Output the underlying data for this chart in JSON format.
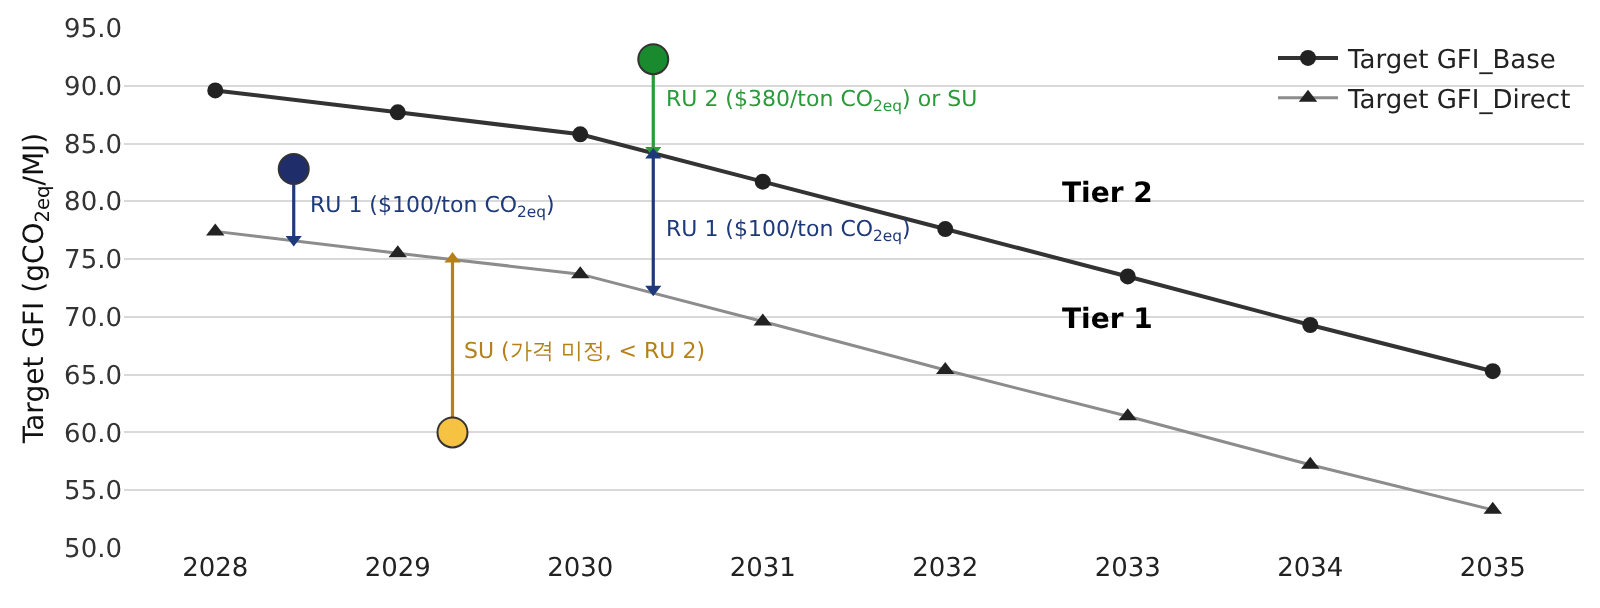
{
  "chart_data": {
    "type": "line",
    "ylabel": "Target GFI (gCO$_{2eq}$/MJ)",
    "xlim": [
      2027.5,
      2035.5
    ],
    "xticks": [
      2028,
      2029,
      2030,
      2031,
      2032,
      2033,
      2034,
      2035
    ],
    "ylim": [
      50,
      95
    ],
    "yticks": [
      {
        "value": 50,
        "label": "50.0"
      },
      {
        "value": 55,
        "label": "55.0"
      },
      {
        "value": 60,
        "label": "60.0"
      },
      {
        "value": 65,
        "label": "65.0"
      },
      {
        "value": 70,
        "label": "70.0"
      },
      {
        "value": 75,
        "label": "75.0"
      },
      {
        "value": 80,
        "label": "80.0"
      },
      {
        "value": 85,
        "label": "85.0"
      },
      {
        "value": 90,
        "label": "90.0"
      },
      {
        "value": 95,
        "label": "95.0"
      }
    ],
    "grid": "y",
    "legend": "top right",
    "x": [
      2028,
      2029,
      2030,
      2031,
      2032,
      2033,
      2034,
      2035
    ],
    "series": [
      {
        "name": "Target GFI_Base",
        "color": "#333333",
        "marker": "circle",
        "values": [
          89.6,
          87.7,
          85.8,
          81.7,
          77.6,
          73.5,
          69.3,
          65.3
        ]
      },
      {
        "name": "Target GFI_Direct",
        "color": "#8c8c8c",
        "marker": "triangle",
        "values": [
          77.4,
          75.5,
          73.7,
          69.6,
          65.4,
          61.4,
          57.2,
          53.3
        ]
      },
      {
        "type": "line",
        "marker": "triangle",
        "line_style": "solid",
        "color": "#1f3a7a",
        "x": [
          2028.43,
          2028.43
        ],
        "values": [
          82.0,
          76.7
        ]
      },
      {
        "type": "line",
        "marker": "triangle",
        "line_style": "solid",
        "color": "#b5801a",
        "x": [
          2029.3,
          2029.3
        ],
        "values": [
          75.0,
          60.8
        ]
      },
      {
        "type": "line",
        "marker": "triangle",
        "line_style": "solid",
        "color": "#2a9a3a",
        "x": [
          2030.4,
          2030.4
        ],
        "values": [
          91.5,
          84.4
        ]
      },
      {
        "type": "line",
        "marker": "triangle",
        "line_style": "solid",
        "color": "#1f3a7a",
        "x": [
          2030.4,
          2030.4
        ],
        "values": [
          84.0,
          72.4
        ]
      },
      {
        "type": "scatter",
        "marker": "circle",
        "color": "#1f2d6b",
        "x": [
          2028.43
        ],
        "values": [
          82.8
        ]
      },
      {
        "type": "scatter",
        "marker": "circle",
        "color": "#f5c242",
        "x": [
          2029.3
        ],
        "values": [
          60.0
        ]
      },
      {
        "type": "scatter",
        "marker": "circle",
        "color": "#1a8a2e",
        "x": [
          2030.4
        ],
        "values": [
          92.3
        ]
      }
    ],
    "annotations": [
      "RU 1 ($100/ton CO$_{2eq}$)",
      "SU (가격 미정, < RU 2)",
      "RU 2 ($380/ton CO$_{2eq}$) or SU",
      "RU 1 ($100/ton CO$_{2eq}$)",
      "Tier 2",
      "Tier 1"
    ]
  }
}
